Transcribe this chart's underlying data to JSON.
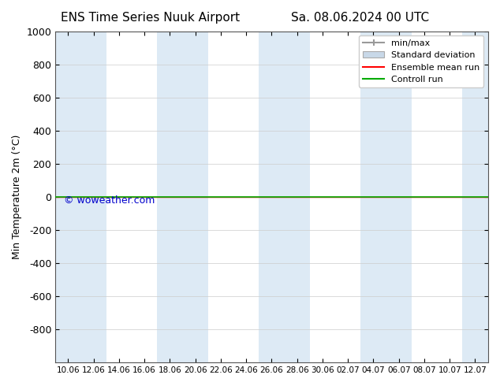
{
  "title_left": "ENS Time Series Nuuk Airport",
  "title_right": "Sa. 08.06.2024 00 UTC",
  "ylabel": "Min Temperature 2m (°C)",
  "xlim_labels": [
    "10.06",
    "12.06",
    "14.06",
    "16.06",
    "18.06",
    "20.06",
    "22.06",
    "24.06",
    "26.06",
    "28.06",
    "30.06",
    "02.07",
    "04.07",
    "06.07",
    "08.07",
    "10.07",
    "12.07"
  ],
  "ylim": [
    -1000,
    1000
  ],
  "yticks": [
    -800,
    -600,
    -400,
    -200,
    0,
    200,
    400,
    600,
    800,
    1000
  ],
  "background_color": "#ffffff",
  "plot_bg_color": "#ffffff",
  "shaded_band_color": "#cce0f0",
  "shaded_band_alpha": 0.65,
  "green_line_y": 0,
  "red_line_y": 0,
  "watermark": "© woweather.com",
  "watermark_color": "#0000cc",
  "legend_items": [
    "min/max",
    "Standard deviation",
    "Ensemble mean run",
    "Controll run"
  ],
  "legend_colors": [
    "#aaaaaa",
    "#c8d8e8",
    "#ff0000",
    "#00aa00"
  ],
  "font_family": "DejaVu Sans"
}
